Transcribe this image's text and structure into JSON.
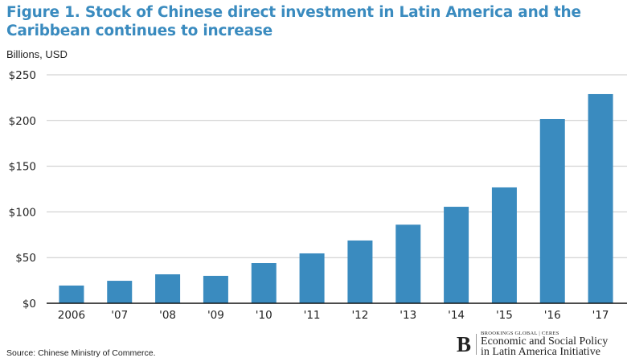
{
  "chart_data": {
    "type": "bar",
    "title": "Figure 1. Stock of Chinese direct investment in Latin America and the Caribbean continues to increase",
    "ylabel": "Billions, USD",
    "xlabel": "",
    "categories": [
      "2006",
      "'07",
      "'08",
      "'09",
      "'10",
      "'11",
      "'12",
      "'13",
      "'14",
      "'15",
      "'16",
      "'17"
    ],
    "values": [
      19.4,
      24.6,
      31.7,
      30,
      44,
      54.6,
      68.7,
      86,
      105.6,
      126.8,
      201.6,
      228.9
    ],
    "ylim": [
      0,
      250
    ],
    "yticks": [
      0,
      50,
      100,
      150,
      200,
      250
    ],
    "ytick_labels": [
      "$0",
      "$50",
      "$100",
      "$150",
      "$200",
      "$250"
    ],
    "grid": true,
    "bar_color": "#3a8bbf"
  },
  "source": "Source: Chinese Ministry of Commerce.",
  "logo": {
    "small": "BROOKINGS GLOBAL | CERES",
    "line1": "Economic and Social Policy",
    "line2": "in Latin America Initiative",
    "mark": "B"
  }
}
